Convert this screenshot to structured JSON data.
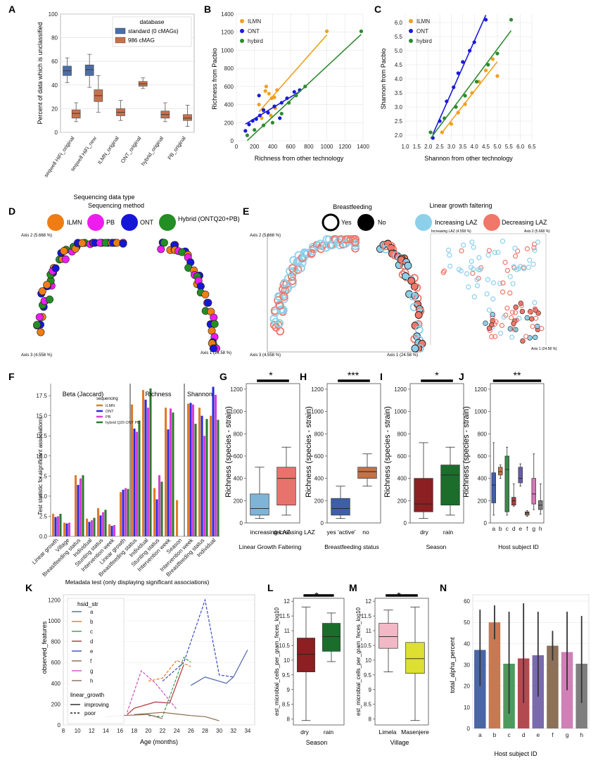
{
  "panels": {
    "A": {
      "letter": "A",
      "ylabel": "Percent of data which is unclassified",
      "xlabel": "Sequencing data type",
      "legend_title": "database",
      "legend": [
        {
          "name": "standard (0 cMAGs)",
          "color": "#4c6ea8"
        },
        {
          "name": "986 cMAG",
          "color": "#c7714b"
        }
      ],
      "yticks": [
        "0",
        "20",
        "40",
        "60",
        "80",
        "100"
      ]
    },
    "B": {
      "letter": "B",
      "xlabel": "Richness from other technology",
      "ylabel": "Richness from Pacbio",
      "xticks": [
        "0",
        "200",
        "400",
        "600",
        "800",
        "1000",
        "1200",
        "1400"
      ],
      "yticks": [
        "0",
        "200",
        "400",
        "600",
        "800",
        "1000",
        "1200",
        "1400"
      ],
      "legend": [
        {
          "name": "ILMN",
          "color": "#f0a020"
        },
        {
          "name": "ONT",
          "color": "#1a1ad9"
        },
        {
          "name": "hybird",
          "color": "#2e8a2e"
        }
      ]
    },
    "C": {
      "letter": "C",
      "xlabel": "Shannon from other technology",
      "ylabel": "Shannon from Pacbio",
      "xticks": [
        "1.0",
        "1.5",
        "2.0",
        "2.5",
        "3.0",
        "3.5",
        "4.0",
        "4.5",
        "5.0",
        "5.5",
        "6.0",
        "6.5"
      ],
      "yticks": [
        "2.0",
        "2.5",
        "3.0",
        "3.5",
        "4.0",
        "4.5",
        "5.0",
        "5.5",
        "6.0"
      ],
      "legend": [
        {
          "name": "ILMN",
          "color": "#f0a020"
        },
        {
          "name": "ONT",
          "color": "#1a1ad9"
        },
        {
          "name": "hybird",
          "color": "#2e8a2e"
        }
      ]
    },
    "D": {
      "letter": "D",
      "title": "Sequencing method",
      "legend": [
        {
          "name": "ILMN",
          "color": "#f07d14"
        },
        {
          "name": "PB",
          "color": "#ee1cee"
        },
        {
          "name": "ONT",
          "color": "#1616d8"
        },
        {
          "name": "Hybrid (ONTQ20+PB)",
          "color": "#238e23"
        }
      ],
      "axis2": "Axis 2 (5.668 %)",
      "axis3": "Axis 3 (4.558 %)",
      "axis1": "Axis 1 (24.58 %)"
    },
    "E": {
      "letter": "E",
      "bf_title": "Breastfeeding",
      "bf_yes": "Yes",
      "bf_no": "No",
      "lgf_title": "Linear growth faltering",
      "lgf_inc": "Increasing LAZ",
      "lgf_dec": "Decreasing LAZ",
      "axis2": "Axis 2 (5.668 %)",
      "axis3": "Axis 3 (4.558 %)",
      "axis1": "Axis 1 (24.58 %)",
      "axis2b": "Axis 2 (5.668 %)",
      "axis3b": "Increasing LAZ (4.558 %)",
      "axis1b": "Axis 1 (24.58 %)"
    },
    "F": {
      "letter": "F",
      "ylabel": "Test statistic for significant associations",
      "xlabel": "Metadata test (only displaying significant associations)",
      "sections": [
        "Beta (Jaccard)",
        "Richness",
        "Shannon"
      ],
      "legend_title": "sequencing",
      "legend": [
        {
          "name": "ILMN",
          "color": "#e07a2a"
        },
        {
          "name": "ONT",
          "color": "#2a2ae0"
        },
        {
          "name": "PB",
          "color": "#d640d6"
        },
        {
          "name": "hybrid Q20 ONT PB",
          "color": "#2c7a2c"
        }
      ],
      "yticks": [
        "0.0",
        "2.5",
        "5.0",
        "7.5",
        "10.0",
        "12.5",
        "15.0",
        "17.5"
      ]
    },
    "G": {
      "letter": "G",
      "ylabel": "Richness (species - strain)",
      "title": "Linear Growth Faltering",
      "sig": "*",
      "cats": [
        "increasing LAZ",
        "decreasing LAZ"
      ]
    },
    "H": {
      "letter": "H",
      "ylabel": "Richness (species - strain)",
      "title": "Breastfeeding status",
      "sig": "***",
      "cats": [
        "yes 'active'",
        "no"
      ]
    },
    "I": {
      "letter": "I",
      "ylabel": "Richness (species - strain)",
      "title": "Season",
      "sig": "*",
      "cats": [
        "dry",
        "rain"
      ]
    },
    "J": {
      "letter": "J",
      "ylabel": "Richness (species - strain)",
      "title": "Host subject ID",
      "sig": "**",
      "cats": [
        "a",
        "b",
        "c",
        "d",
        "e",
        "f",
        "g",
        "h"
      ]
    },
    "K": {
      "letter": "K",
      "ylabel": "observed_features",
      "xlabel": "Age (months)",
      "legend_title": "hsid_str",
      "legend_lgf": "linear_growth",
      "improving": "improving",
      "poor": "poor",
      "xticks": [
        "8",
        "10",
        "12",
        "14",
        "16",
        "18",
        "20",
        "22",
        "24",
        "26",
        "28",
        "30",
        "32",
        "34"
      ],
      "yticks": [
        "0",
        "200",
        "400",
        "600",
        "800",
        "1000",
        "1200"
      ]
    },
    "L": {
      "letter": "L",
      "ylabel": "est_microbial_cells_per_gram_feces_log10",
      "xlabel": "Season",
      "sig": "*",
      "cats": [
        "dry",
        "rain"
      ]
    },
    "M": {
      "letter": "M",
      "ylabel": "est_microbial_cells_per_gram_feces_log10",
      "xlabel": "Village",
      "sig": "*",
      "cats": [
        "Limela",
        "Masenjere"
      ]
    },
    "N": {
      "letter": "N",
      "ylabel": "total_alpha_percent",
      "xlabel": "Host subject ID",
      "cats": [
        "a",
        "b",
        "c",
        "d",
        "e",
        "f",
        "g",
        "h"
      ],
      "yticks": [
        "0",
        "10",
        "20",
        "30",
        "40",
        "50",
        "60"
      ]
    }
  },
  "chart_data": [
    {
      "id": "A",
      "type": "box",
      "categories": [
        "seqwell HiFi_original",
        "seqwell HiFi_new",
        "ILMN_original",
        "ONT_original",
        "hybrid_original",
        "PB_original"
      ],
      "series": [
        {
          "name": "standard (0 cMAGs)",
          "boxes": [
            [
              42,
              48,
              52,
              56,
              63
            ],
            [
              38,
              48,
              53,
              57,
              66
            ],
            null,
            null,
            null,
            null
          ]
        },
        {
          "name": "986 cMAG",
          "boxes": [
            [
              9,
              12,
              16,
              19,
              25
            ],
            [
              17,
              26,
              31,
              36,
              48
            ],
            [
              10,
              14,
              17,
              20,
              27
            ],
            [
              37,
              39,
              41,
              43,
              46
            ],
            [
              9,
              12,
              15,
              18,
              25
            ],
            [
              5,
              10,
              12,
              15,
              23
            ]
          ]
        }
      ],
      "ylim": [
        0,
        100
      ]
    },
    {
      "id": "B",
      "type": "scatter",
      "xlim": [
        0,
        1400
      ],
      "ylim": [
        0,
        1400
      ],
      "series": [
        {
          "name": "ILMN",
          "points": [
            [
              250,
              400
            ],
            [
              300,
              330
            ],
            [
              320,
              550
            ],
            [
              360,
              520
            ],
            [
              390,
              470
            ],
            [
              420,
              480
            ],
            [
              330,
              600
            ],
            [
              450,
              560
            ],
            [
              280,
              250
            ],
            [
              380,
              280
            ],
            [
              430,
              360
            ],
            [
              1000,
              1210
            ]
          ]
        },
        {
          "name": "ONT",
          "points": [
            [
              100,
              110
            ],
            [
              140,
              180
            ],
            [
              180,
              220
            ],
            [
              220,
              240
            ],
            [
              260,
              280
            ],
            [
              300,
              340
            ],
            [
              350,
              310
            ],
            [
              420,
              380
            ],
            [
              500,
              420
            ],
            [
              560,
              470
            ],
            [
              640,
              540
            ],
            [
              700,
              560
            ],
            [
              250,
              500
            ],
            [
              480,
              250
            ]
          ]
        },
        {
          "name": "hybird",
          "points": [
            [
              120,
              60
            ],
            [
              200,
              120
            ],
            [
              300,
              170
            ],
            [
              400,
              200
            ],
            [
              500,
              300
            ],
            [
              580,
              420
            ],
            [
              660,
              500
            ],
            [
              760,
              600
            ],
            [
              1380,
              1210
            ]
          ]
        }
      ]
    },
    {
      "id": "C",
      "type": "scatter",
      "xlim": [
        1.0,
        6.5
      ],
      "ylim": [
        1.8,
        6.3
      ],
      "series": [
        {
          "name": "ILMN",
          "points": [
            [
              2.6,
              2.1
            ],
            [
              3.0,
              2.4
            ],
            [
              3.3,
              2.8
            ],
            [
              3.6,
              3.1
            ],
            [
              3.9,
              3.5
            ],
            [
              4.2,
              3.9
            ],
            [
              4.5,
              4.3
            ],
            [
              4.8,
              4.7
            ],
            [
              5.0,
              4.1
            ]
          ]
        },
        {
          "name": "ONT",
          "points": [
            [
              2.2,
              1.9
            ],
            [
              2.5,
              2.5
            ],
            [
              2.8,
              3.2
            ],
            [
              3.1,
              3.7
            ],
            [
              3.3,
              4.2
            ],
            [
              3.5,
              4.6
            ],
            [
              3.8,
              5.0
            ],
            [
              4.0,
              5.3
            ],
            [
              4.5,
              6.1
            ]
          ]
        },
        {
          "name": "hybird",
          "points": [
            [
              2.1,
              2.1
            ],
            [
              2.7,
              2.6
            ],
            [
              3.2,
              3.0
            ],
            [
              3.6,
              3.4
            ],
            [
              4.1,
              3.9
            ],
            [
              4.6,
              4.5
            ],
            [
              5.0,
              4.9
            ],
            [
              5.6,
              6.1
            ]
          ]
        }
      ]
    },
    {
      "id": "F",
      "type": "bar",
      "categories": [
        "Linear growth",
        "Village",
        "Breastfeeding status",
        "Individual",
        "Stunting status",
        "Intervention week",
        "Linear growth",
        "Breastfeeding status",
        "Individual",
        "Stunting status",
        "Intervention week",
        "Season",
        "Intervention week",
        "Breastfeeding status",
        "Individual"
      ],
      "series": [
        {
          "name": "ILMN",
          "values": [
            2.8,
            1.7,
            7.6,
            2.2,
            3.5,
            1.5,
            5.5,
            16.4,
            18.2,
            6.0,
            16.0,
            4.5,
            16.5,
            16.0,
            15.0
          ]
        },
        {
          "name": "ONT",
          "values": [
            2.4,
            1.6,
            6.4,
            1.8,
            2.6,
            1.3,
            5.8,
            13.4,
            17.0,
            4.6,
            13.3,
            0,
            16.6,
            15.0,
            18.6
          ]
        },
        {
          "name": "PB",
          "values": [
            2.5,
            1.7,
            7.2,
            2.0,
            3.0,
            1.4,
            6.0,
            13.0,
            16.0,
            7.6,
            15.9,
            0,
            16.4,
            12.5,
            17.6
          ]
        },
        {
          "name": "hybrid Q20 ONT PB",
          "values": [
            2.8,
            0,
            7.6,
            2.3,
            3.3,
            0,
            5.9,
            14.4,
            18.4,
            6.8,
            15.4,
            0,
            14.0,
            14.6,
            14.5
          ]
        }
      ],
      "ylim": [
        0,
        19
      ]
    },
    {
      "id": "G",
      "type": "box",
      "ylim": [
        0,
        1250
      ],
      "boxes": [
        [
          40,
          70,
          130,
          260,
          500
        ],
        [
          70,
          160,
          400,
          500,
          680
        ]
      ],
      "colors": [
        "#7fb4d6",
        "#e8736c"
      ]
    },
    {
      "id": "H",
      "type": "box",
      "ylim": [
        0,
        1250
      ],
      "boxes": [
        [
          40,
          70,
          130,
          220,
          330
        ],
        [
          330,
          400,
          460,
          500,
          620
        ]
      ],
      "colors": [
        "#3e5fa8",
        "#c27448"
      ]
    },
    {
      "id": "I",
      "type": "box",
      "ylim": [
        0,
        1250
      ],
      "boxes": [
        [
          40,
          100,
          170,
          400,
          720
        ],
        [
          70,
          160,
          430,
          520,
          680
        ]
      ],
      "colors": [
        "#8c1f22",
        "#1b6d2c"
      ]
    },
    {
      "id": "J",
      "type": "box",
      "ylim": [
        0,
        1250
      ],
      "boxes": [
        [
          70,
          180,
          340,
          450,
          720
        ],
        [
          400,
          430,
          460,
          500,
          520
        ],
        [
          70,
          100,
          480,
          600,
          680
        ],
        [
          150,
          160,
          200,
          230,
          350
        ],
        [
          330,
          360,
          400,
          500,
          530
        ],
        [
          60,
          70,
          90,
          100,
          110
        ],
        [
          120,
          170,
          260,
          400,
          620
        ],
        [
          80,
          120,
          160,
          200,
          350
        ]
      ],
      "colors": [
        "#3e5fa8",
        "#c27448",
        "#3b8a4a",
        "#a33f44",
        "#6a5ca8",
        "#8a6a4e",
        "#d07ab8",
        "#7c7c7c"
      ]
    },
    {
      "id": "K",
      "type": "line",
      "xlim": [
        8,
        35
      ],
      "ylim": [
        0,
        1250
      ]
    },
    {
      "id": "L",
      "type": "box",
      "ylim": [
        7.8,
        12.1
      ],
      "boxes": [
        [
          7.95,
          9.6,
          10.2,
          10.75,
          11.8
        ],
        [
          9.95,
          10.3,
          10.8,
          11.25,
          11.6
        ]
      ],
      "colors": [
        "#8c1f22",
        "#1b6d2c"
      ]
    },
    {
      "id": "M",
      "type": "box",
      "ylim": [
        7.8,
        12.1
      ],
      "boxes": [
        [
          9.6,
          10.4,
          10.8,
          11.25,
          11.7
        ],
        [
          7.95,
          9.55,
          10.05,
          10.6,
          11.8
        ]
      ],
      "colors": [
        "#f2b8c6",
        "#dde030"
      ]
    },
    {
      "id": "N",
      "type": "bar",
      "categories": [
        "a",
        "b",
        "c",
        "d",
        "e",
        "f",
        "g",
        "h"
      ],
      "values": [
        37,
        50,
        30.5,
        33,
        34.5,
        39,
        36,
        30.5
      ],
      "err": [
        [
          20,
          56
        ],
        [
          42,
          58
        ],
        [
          7,
          55
        ],
        [
          12,
          59
        ],
        [
          15,
          55
        ],
        [
          32,
          46
        ],
        [
          18,
          55
        ],
        [
          12,
          53
        ]
      ],
      "colors": [
        "#4a66a6",
        "#c77a52",
        "#4e9a5c",
        "#b24a52",
        "#7a6aac",
        "#8c7058",
        "#cf80b6",
        "#7e7e7e"
      ],
      "ylim": [
        0,
        63
      ]
    }
  ]
}
